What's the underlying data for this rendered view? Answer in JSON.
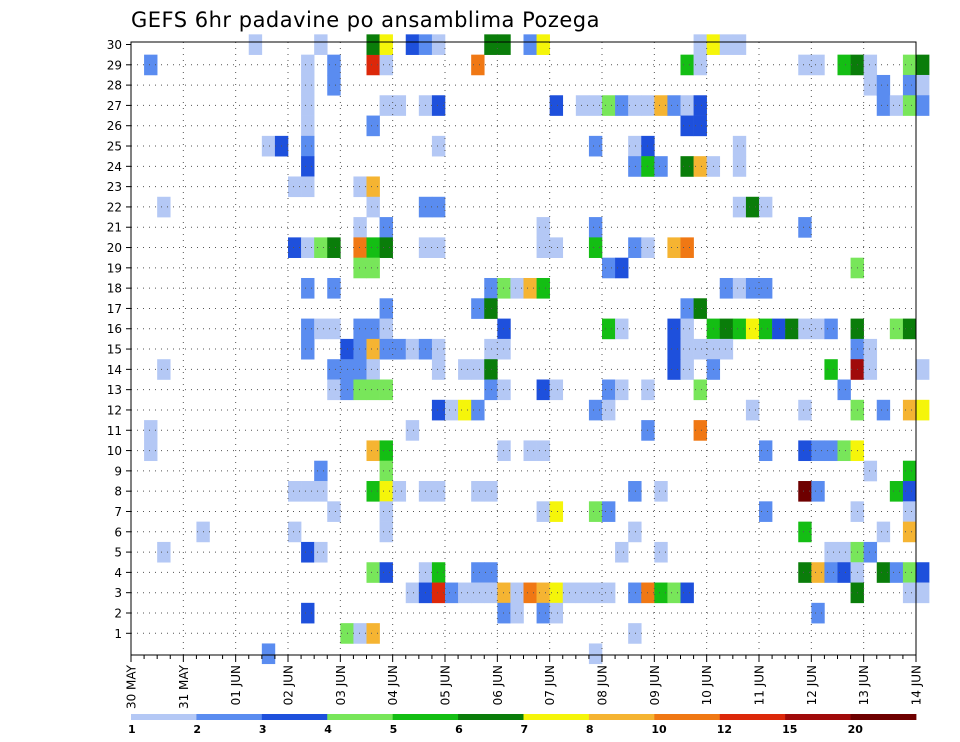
{
  "title": "GEFS 6hr padavine po ansamblima Pozega",
  "chart_data": {
    "type": "heatmap",
    "title": "GEFS 6hr padavine po ansamblima Pozega",
    "x_tick_labels": [
      "30 MAY",
      "31 MAY",
      "01 JUN",
      "02 JUN",
      "03 JUN",
      "04 JUN",
      "05 JUN",
      "06 JUN",
      "07 JUN",
      "08 JUN",
      "09 JUN",
      "10 JUN",
      "11 JUN",
      "12 JUN",
      "13 JUN",
      "14 JUN"
    ],
    "y_tick_labels": [
      "1",
      "2",
      "3",
      "4",
      "5",
      "6",
      "7",
      "8",
      "9",
      "10",
      "11",
      "12",
      "13",
      "14",
      "15",
      "16",
      "17",
      "18",
      "19",
      "20",
      "21",
      "22",
      "23",
      "24",
      "25",
      "26",
      "27",
      "28",
      "29",
      "30"
    ],
    "y_label_min": 1,
    "y_label_max": 30,
    "steps_per_day": 4,
    "colorbar": {
      "labels": [
        "1",
        "2",
        "3",
        "4",
        "5",
        "6",
        "7",
        "8",
        "10",
        "12",
        "15",
        "20"
      ],
      "colors": [
        "#b4c8f5",
        "#5a8cf0",
        "#1e50dc",
        "#78e65a",
        "#14be14",
        "#0a7d0a",
        "#f5f50a",
        "#f5b432",
        "#f07814",
        "#dc280a",
        "#a00a0a",
        "#6e0000"
      ]
    },
    "cells_note": "each cell: [step index from 30 MAY 00z (6-hourly), ensemble member, colour class 1-12]",
    "cells": [
      [
        1,
        29,
        2
      ],
      [
        13,
        29,
        1
      ],
      [
        15,
        29,
        2
      ],
      [
        18,
        29,
        10
      ],
      [
        19,
        29,
        1
      ],
      [
        26,
        29,
        9
      ],
      [
        42,
        29,
        5
      ],
      [
        43,
        29,
        1
      ],
      [
        51,
        29,
        1
      ],
      [
        52,
        29,
        1
      ],
      [
        54,
        29,
        5
      ],
      [
        55,
        29,
        6
      ],
      [
        56,
        29,
        1
      ],
      [
        59,
        29,
        4
      ],
      [
        60,
        29,
        6
      ],
      [
        9,
        30,
        1
      ],
      [
        14,
        30,
        1
      ],
      [
        18,
        30,
        6
      ],
      [
        19,
        30,
        7
      ],
      [
        21,
        30,
        3
      ],
      [
        22,
        30,
        2
      ],
      [
        23,
        30,
        1
      ],
      [
        27,
        30,
        6
      ],
      [
        28,
        30,
        6
      ],
      [
        30,
        30,
        2
      ],
      [
        31,
        30,
        7
      ],
      [
        43,
        30,
        1
      ],
      [
        44,
        30,
        7
      ],
      [
        45,
        30,
        1
      ],
      [
        46,
        30,
        1
      ],
      [
        13,
        28,
        1
      ],
      [
        15,
        28,
        2
      ],
      [
        56,
        28,
        1
      ],
      [
        57,
        28,
        2
      ],
      [
        59,
        28,
        2
      ],
      [
        60,
        28,
        1
      ],
      [
        13,
        27,
        1
      ],
      [
        19,
        27,
        1
      ],
      [
        20,
        27,
        1
      ],
      [
        22,
        27,
        1
      ],
      [
        23,
        27,
        3
      ],
      [
        32,
        27,
        3
      ],
      [
        34,
        27,
        1
      ],
      [
        35,
        27,
        1
      ],
      [
        36,
        27,
        4
      ],
      [
        37,
        27,
        2
      ],
      [
        38,
        27,
        1
      ],
      [
        39,
        27,
        1
      ],
      [
        40,
        27,
        8
      ],
      [
        41,
        27,
        2
      ],
      [
        42,
        27,
        1
      ],
      [
        43,
        27,
        3
      ],
      [
        57,
        27,
        2
      ],
      [
        58,
        27,
        1
      ],
      [
        59,
        27,
        4
      ],
      [
        60,
        27,
        2
      ],
      [
        13,
        26,
        1
      ],
      [
        18,
        26,
        2
      ],
      [
        42,
        26,
        3
      ],
      [
        43,
        26,
        3
      ],
      [
        10,
        25,
        1
      ],
      [
        11,
        25,
        3
      ],
      [
        13,
        25,
        2
      ],
      [
        23,
        25,
        1
      ],
      [
        35,
        25,
        2
      ],
      [
        38,
        25,
        1
      ],
      [
        39,
        25,
        3
      ],
      [
        46,
        25,
        1
      ],
      [
        13,
        24,
        3
      ],
      [
        38,
        24,
        2
      ],
      [
        39,
        24,
        5
      ],
      [
        40,
        24,
        2
      ],
      [
        42,
        24,
        6
      ],
      [
        43,
        24,
        8
      ],
      [
        44,
        24,
        1
      ],
      [
        46,
        24,
        1
      ],
      [
        12,
        23,
        1
      ],
      [
        13,
        23,
        1
      ],
      [
        17,
        23,
        1
      ],
      [
        18,
        23,
        8
      ],
      [
        2,
        22,
        1
      ],
      [
        18,
        22,
        1
      ],
      [
        22,
        22,
        2
      ],
      [
        23,
        22,
        2
      ],
      [
        46,
        22,
        1
      ],
      [
        47,
        22,
        6
      ],
      [
        48,
        22,
        1
      ],
      [
        17,
        21,
        1
      ],
      [
        19,
        21,
        2
      ],
      [
        31,
        21,
        1
      ],
      [
        35,
        21,
        2
      ],
      [
        51,
        21,
        2
      ],
      [
        12,
        20,
        3
      ],
      [
        13,
        20,
        1
      ],
      [
        14,
        20,
        4
      ],
      [
        15,
        20,
        6
      ],
      [
        17,
        20,
        9
      ],
      [
        18,
        20,
        5
      ],
      [
        19,
        20,
        6
      ],
      [
        22,
        20,
        1
      ],
      [
        23,
        20,
        1
      ],
      [
        31,
        20,
        1
      ],
      [
        32,
        20,
        1
      ],
      [
        35,
        20,
        5
      ],
      [
        38,
        20,
        2
      ],
      [
        39,
        20,
        1
      ],
      [
        41,
        20,
        8
      ],
      [
        42,
        20,
        9
      ],
      [
        17,
        19,
        4
      ],
      [
        18,
        19,
        4
      ],
      [
        36,
        19,
        2
      ],
      [
        37,
        19,
        3
      ],
      [
        55,
        19,
        4
      ],
      [
        13,
        18,
        2
      ],
      [
        15,
        18,
        2
      ],
      [
        27,
        18,
        2
      ],
      [
        28,
        18,
        4
      ],
      [
        29,
        18,
        1
      ],
      [
        30,
        18,
        8
      ],
      [
        31,
        18,
        5
      ],
      [
        45,
        18,
        2
      ],
      [
        46,
        18,
        1
      ],
      [
        47,
        18,
        2
      ],
      [
        48,
        18,
        2
      ],
      [
        19,
        17,
        2
      ],
      [
        26,
        17,
        2
      ],
      [
        27,
        17,
        6
      ],
      [
        42,
        17,
        2
      ],
      [
        43,
        17,
        6
      ],
      [
        13,
        16,
        2
      ],
      [
        14,
        16,
        1
      ],
      [
        15,
        16,
        1
      ],
      [
        17,
        16,
        2
      ],
      [
        18,
        16,
        2
      ],
      [
        19,
        16,
        1
      ],
      [
        28,
        16,
        3
      ],
      [
        36,
        16,
        5
      ],
      [
        37,
        16,
        1
      ],
      [
        41,
        16,
        3
      ],
      [
        42,
        16,
        1
      ],
      [
        44,
        16,
        5
      ],
      [
        45,
        16,
        6
      ],
      [
        46,
        16,
        5
      ],
      [
        47,
        16,
        7
      ],
      [
        48,
        16,
        5
      ],
      [
        49,
        16,
        3
      ],
      [
        50,
        16,
        6
      ],
      [
        51,
        16,
        1
      ],
      [
        52,
        16,
        1
      ],
      [
        53,
        16,
        2
      ],
      [
        55,
        16,
        6
      ],
      [
        58,
        16,
        4
      ],
      [
        59,
        16,
        6
      ],
      [
        13,
        15,
        2
      ],
      [
        16,
        15,
        3
      ],
      [
        17,
        15,
        2
      ],
      [
        18,
        15,
        8
      ],
      [
        19,
        15,
        2
      ],
      [
        20,
        15,
        2
      ],
      [
        21,
        15,
        1
      ],
      [
        22,
        15,
        2
      ],
      [
        23,
        15,
        1
      ],
      [
        27,
        15,
        1
      ],
      [
        28,
        15,
        1
      ],
      [
        41,
        15,
        3
      ],
      [
        42,
        15,
        1
      ],
      [
        43,
        15,
        1
      ],
      [
        44,
        15,
        1
      ],
      [
        45,
        15,
        1
      ],
      [
        55,
        15,
        2
      ],
      [
        56,
        15,
        1
      ],
      [
        2,
        14,
        1
      ],
      [
        15,
        14,
        2
      ],
      [
        16,
        14,
        2
      ],
      [
        17,
        14,
        2
      ],
      [
        18,
        14,
        1
      ],
      [
        23,
        14,
        1
      ],
      [
        25,
        14,
        1
      ],
      [
        26,
        14,
        1
      ],
      [
        27,
        14,
        6
      ],
      [
        41,
        14,
        3
      ],
      [
        42,
        14,
        1
      ],
      [
        44,
        14,
        2
      ],
      [
        53,
        14,
        5
      ],
      [
        55,
        14,
        11
      ],
      [
        56,
        14,
        1
      ],
      [
        60,
        14,
        1
      ],
      [
        15,
        13,
        1
      ],
      [
        16,
        13,
        2
      ],
      [
        17,
        13,
        4
      ],
      [
        18,
        13,
        4
      ],
      [
        19,
        13,
        4
      ],
      [
        27,
        13,
        2
      ],
      [
        28,
        13,
        1
      ],
      [
        31,
        13,
        3
      ],
      [
        32,
        13,
        1
      ],
      [
        36,
        13,
        2
      ],
      [
        37,
        13,
        1
      ],
      [
        39,
        13,
        1
      ],
      [
        43,
        13,
        4
      ],
      [
        54,
        13,
        2
      ],
      [
        23,
        12,
        3
      ],
      [
        24,
        12,
        1
      ],
      [
        25,
        12,
        7
      ],
      [
        26,
        12,
        2
      ],
      [
        35,
        12,
        2
      ],
      [
        36,
        12,
        1
      ],
      [
        47,
        12,
        1
      ],
      [
        51,
        12,
        1
      ],
      [
        55,
        12,
        4
      ],
      [
        57,
        12,
        2
      ],
      [
        59,
        12,
        8
      ],
      [
        60,
        12,
        7
      ],
      [
        1,
        11,
        1
      ],
      [
        21,
        11,
        1
      ],
      [
        39,
        11,
        2
      ],
      [
        43,
        11,
        9
      ],
      [
        1,
        10,
        1
      ],
      [
        18,
        10,
        8
      ],
      [
        19,
        10,
        5
      ],
      [
        28,
        10,
        1
      ],
      [
        30,
        10,
        1
      ],
      [
        31,
        10,
        1
      ],
      [
        48,
        10,
        2
      ],
      [
        51,
        10,
        3
      ],
      [
        52,
        10,
        2
      ],
      [
        53,
        10,
        2
      ],
      [
        54,
        10,
        4
      ],
      [
        55,
        10,
        7
      ],
      [
        14,
        9,
        2
      ],
      [
        19,
        9,
        4
      ],
      [
        56,
        9,
        1
      ],
      [
        59,
        9,
        5
      ],
      [
        12,
        8,
        1
      ],
      [
        13,
        8,
        1
      ],
      [
        14,
        8,
        1
      ],
      [
        18,
        8,
        5
      ],
      [
        19,
        8,
        7
      ],
      [
        20,
        8,
        1
      ],
      [
        22,
        8,
        1
      ],
      [
        23,
        8,
        1
      ],
      [
        26,
        8,
        1
      ],
      [
        27,
        8,
        1
      ],
      [
        38,
        8,
        2
      ],
      [
        40,
        8,
        1
      ],
      [
        51,
        8,
        12
      ],
      [
        52,
        8,
        2
      ],
      [
        58,
        8,
        5
      ],
      [
        59,
        8,
        3
      ],
      [
        15,
        7,
        1
      ],
      [
        19,
        7,
        1
      ],
      [
        31,
        7,
        1
      ],
      [
        32,
        7,
        7
      ],
      [
        35,
        7,
        4
      ],
      [
        36,
        7,
        2
      ],
      [
        48,
        7,
        2
      ],
      [
        55,
        7,
        1
      ],
      [
        59,
        7,
        1
      ],
      [
        5,
        6,
        1
      ],
      [
        12,
        6,
        1
      ],
      [
        19,
        6,
        1
      ],
      [
        38,
        6,
        1
      ],
      [
        51,
        6,
        5
      ],
      [
        57,
        6,
        1
      ],
      [
        59,
        6,
        8
      ],
      [
        2,
        5,
        1
      ],
      [
        13,
        5,
        3
      ],
      [
        14,
        5,
        1
      ],
      [
        37,
        5,
        1
      ],
      [
        40,
        5,
        1
      ],
      [
        53,
        5,
        1
      ],
      [
        54,
        5,
        1
      ],
      [
        55,
        5,
        4
      ],
      [
        56,
        5,
        2
      ],
      [
        18,
        4,
        4
      ],
      [
        19,
        4,
        3
      ],
      [
        22,
        4,
        1
      ],
      [
        23,
        4,
        5
      ],
      [
        26,
        4,
        2
      ],
      [
        27,
        4,
        2
      ],
      [
        51,
        4,
        6
      ],
      [
        52,
        4,
        8
      ],
      [
        53,
        4,
        2
      ],
      [
        54,
        4,
        3
      ],
      [
        55,
        4,
        1
      ],
      [
        57,
        4,
        6
      ],
      [
        58,
        4,
        2
      ],
      [
        59,
        4,
        4
      ],
      [
        60,
        4,
        3
      ],
      [
        21,
        3,
        1
      ],
      [
        22,
        3,
        3
      ],
      [
        23,
        3,
        10
      ],
      [
        24,
        3,
        2
      ],
      [
        25,
        3,
        1
      ],
      [
        26,
        3,
        1
      ],
      [
        27,
        3,
        1
      ],
      [
        28,
        3,
        8
      ],
      [
        29,
        3,
        1
      ],
      [
        30,
        3,
        9
      ],
      [
        31,
        3,
        8
      ],
      [
        32,
        3,
        7
      ],
      [
        33,
        3,
        1
      ],
      [
        34,
        3,
        1
      ],
      [
        35,
        3,
        1
      ],
      [
        36,
        3,
        1
      ],
      [
        38,
        3,
        2
      ],
      [
        39,
        3,
        9
      ],
      [
        40,
        3,
        5
      ],
      [
        41,
        3,
        4
      ],
      [
        42,
        3,
        3
      ],
      [
        55,
        3,
        6
      ],
      [
        59,
        3,
        1
      ],
      [
        60,
        3,
        1
      ],
      [
        13,
        2,
        3
      ],
      [
        28,
        2,
        2
      ],
      [
        29,
        2,
        1
      ],
      [
        31,
        2,
        2
      ],
      [
        32,
        2,
        1
      ],
      [
        52,
        2,
        2
      ],
      [
        16,
        1,
        4
      ],
      [
        17,
        1,
        1
      ],
      [
        18,
        1,
        8
      ],
      [
        38,
        1,
        1
      ],
      [
        10,
        0,
        2
      ],
      [
        35,
        0,
        1
      ]
    ]
  }
}
